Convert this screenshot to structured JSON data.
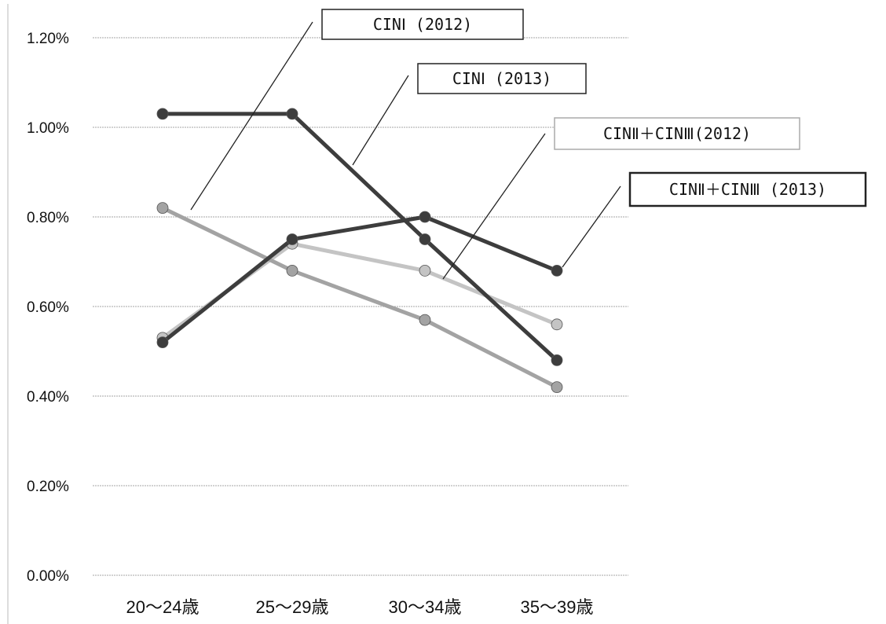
{
  "chart_data": {
    "type": "line",
    "categories": [
      "20～24歳",
      "25～29歳",
      "30～34歳",
      "35～39歳"
    ],
    "y_ticks": [
      "0.00%",
      "0.20%",
      "0.40%",
      "0.60%",
      "0.80%",
      "1.00%",
      "1.20%"
    ],
    "ylim": [
      0,
      1.2
    ],
    "grid": true,
    "legend": "callouts",
    "series": [
      {
        "name": "CINⅠ (2012)",
        "values": [
          0.82,
          0.68,
          0.57,
          0.42
        ],
        "color": "#a3a3a3"
      },
      {
        "name": "CINⅠ (2013)",
        "values": [
          1.03,
          1.03,
          0.75,
          0.48
        ],
        "color": "#3d3d3d"
      },
      {
        "name": "CINⅡ＋CINⅢ(2012)",
        "values": [
          0.53,
          0.74,
          0.68,
          0.56
        ],
        "color": "#c4c4c4"
      },
      {
        "name": "CINⅡ＋CINⅢ (2013)",
        "values": [
          0.52,
          0.75,
          0.8,
          0.68
        ],
        "color": "#3d3d3d"
      }
    ]
  }
}
